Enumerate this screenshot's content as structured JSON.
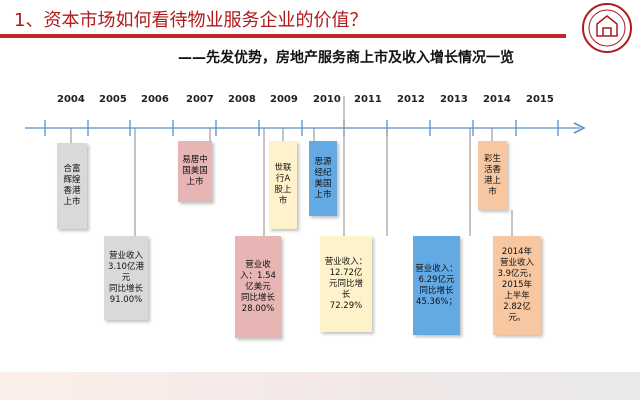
{
  "header": {
    "title": "1、资本市场如何看待物业服务企业的价值？",
    "subtitle": "——先发优势，房地产服务商上市及收入增长情况一览"
  },
  "logo": {
    "icon": "company-seal-logo"
  },
  "timeline": {
    "years": [
      "2004",
      "2005",
      "2006",
      "2007",
      "2008",
      "2009",
      "2010",
      "2011",
      "2012",
      "2013",
      "2014",
      "2015"
    ],
    "events": {
      "hefu": "合富\n辉煌\n香港\n上市",
      "yiju": "易居中\n国美国\n上市",
      "shilian": "世联\n行A\n股上\n市",
      "siyuan": "思源\n经纪\n美国\n上市",
      "caisheng": "彩生\n活香\n港上\n市"
    },
    "revenues": {
      "hefu": "营业收入\n3.10亿港\n元\n同比增长\n91.00%",
      "yiju": "营业收\n入：1.54\n亿美元\n同比增长\n28.00%",
      "shilian": "营业收入：\n12.72亿\n元同比增\n长\n72.29%",
      "siyuan": "营业收入：\n6.29亿元\n同比增长\n45.36%；",
      "caisheng": "2014年\n营业收入\n3.9亿元，\n2015年\n上半年\n2.82亿元。"
    }
  },
  "colors": {
    "title_red": "#b11a1a",
    "axis_blue": "#5b8ec4",
    "gray": "#d9d9d9",
    "red": "#e6b5b4",
    "yellow": "#fdf2c9",
    "blue": "#63a9e4",
    "peach": "#f6c7a1"
  }
}
